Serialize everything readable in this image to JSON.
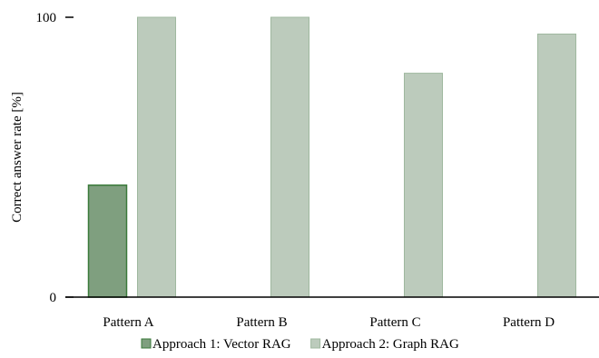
{
  "chart_data": {
    "type": "bar",
    "title": "",
    "xlabel": "",
    "ylabel": "Correct answer rate [%]",
    "ylim": [
      0,
      100
    ],
    "yticks": [
      0,
      100
    ],
    "grid": false,
    "legend_position": "bottom",
    "categories": [
      "Pattern A",
      "Pattern B",
      "Pattern C",
      "Pattern D"
    ],
    "series": [
      {
        "name": "Approach 1: Vector RAG",
        "values": [
          40,
          null,
          null,
          null
        ],
        "fill": "#7f9f7f",
        "stroke": "#3a7a3a"
      },
      {
        "name": "Approach 2: Graph RAG",
        "values": [
          100,
          100,
          80,
          94
        ],
        "fill": "#bccbbc",
        "stroke": "#9fb89f"
      }
    ]
  }
}
